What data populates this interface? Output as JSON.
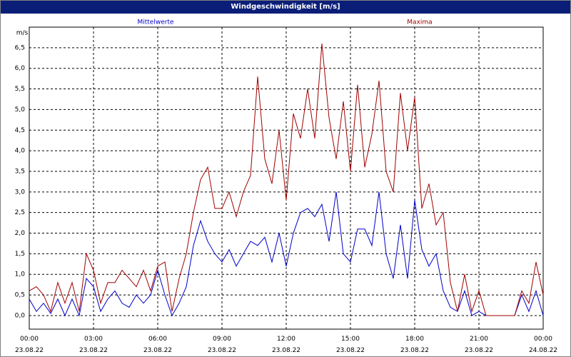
{
  "chart_data": {
    "type": "line",
    "title": "Windgeschwindigkeit [m/s]",
    "y_unit": "m/s",
    "x": [
      0,
      20,
      40,
      60,
      80,
      100,
      120,
      140,
      160,
      180,
      200,
      220,
      240,
      260,
      280,
      300,
      320,
      340,
      360,
      380,
      400,
      420,
      440,
      460,
      480,
      500,
      520,
      540,
      560,
      580,
      600,
      620,
      640,
      660,
      680,
      700,
      720,
      740,
      760,
      780,
      800,
      820,
      840,
      860,
      880,
      900,
      920,
      940,
      960,
      980,
      1000,
      1020,
      1040,
      1060,
      1080,
      1100,
      1120,
      1140,
      1160,
      1180,
      1200,
      1220,
      1240,
      1260,
      1280,
      1300,
      1320,
      1340,
      1360,
      1380,
      1400,
      1420,
      1440
    ],
    "xlim": [
      0,
      1440
    ],
    "xticks": [
      {
        "value": 0,
        "label": "00:00\n23.08.22"
      },
      {
        "value": 180,
        "label": "03:00\n23.08.22"
      },
      {
        "value": 360,
        "label": "06:00\n23.08.22"
      },
      {
        "value": 540,
        "label": "09:00\n23.08.22"
      },
      {
        "value": 720,
        "label": "12:00\n23.08.22"
      },
      {
        "value": 900,
        "label": "15:00\n23.08.22"
      },
      {
        "value": 1080,
        "label": "18:00\n23.08.22"
      },
      {
        "value": 1260,
        "label": "21:00\n23.08.22"
      },
      {
        "value": 1440,
        "label": "00:00\n24.08.22"
      }
    ],
    "ylim": [
      -0.33,
      7.0
    ],
    "yticks": [
      {
        "value": 0,
        "label": "0,0"
      },
      {
        "value": 0.5,
        "label": "0,5"
      },
      {
        "value": 1,
        "label": "1,0"
      },
      {
        "value": 1.5,
        "label": "1,5"
      },
      {
        "value": 2,
        "label": "2,0"
      },
      {
        "value": 2.5,
        "label": "2,5"
      },
      {
        "value": 3,
        "label": "3,0"
      },
      {
        "value": 3.5,
        "label": "3,5"
      },
      {
        "value": 4,
        "label": "4,0"
      },
      {
        "value": 4.5,
        "label": "4,5"
      },
      {
        "value": 5,
        "label": "5,0"
      },
      {
        "value": 5.5,
        "label": "5,5"
      },
      {
        "value": 6,
        "label": "6,0"
      },
      {
        "value": 6.5,
        "label": "6,5"
      }
    ],
    "grid": true,
    "series": [
      {
        "name": "Mittelwerte",
        "color": "#0000c8",
        "values": [
          0.4,
          0.1,
          0.3,
          0.05,
          0.4,
          0,
          0.4,
          0,
          0.9,
          0.7,
          0.1,
          0.4,
          0.6,
          0.3,
          0.2,
          0.5,
          0.3,
          0.5,
          1.1,
          0.5,
          0,
          0.3,
          0.7,
          1.7,
          2.3,
          1.8,
          1.5,
          1.3,
          1.6,
          1.2,
          1.5,
          1.8,
          1.7,
          1.9,
          1.3,
          2.0,
          1.2,
          2.0,
          2.5,
          2.6,
          2.4,
          2.7,
          1.8,
          3.0,
          1.5,
          1.3,
          2.1,
          2.1,
          1.7,
          3.0,
          1.5,
          0.9,
          2.2,
          0.9,
          2.8,
          1.6,
          1.2,
          1.5,
          0.6,
          0.2,
          0.1,
          0.6,
          0,
          0.1,
          0,
          0,
          0,
          0,
          0,
          0.5,
          0.1,
          0.6,
          0
        ]
      },
      {
        "name": "Maxima",
        "color": "#a00000",
        "values": [
          0.6,
          0.7,
          0.5,
          0.1,
          0.8,
          0.3,
          0.8,
          0.1,
          1.5,
          1.1,
          0.3,
          0.8,
          0.8,
          1.1,
          0.9,
          0.7,
          1.1,
          0.6,
          1.2,
          1.3,
          0.1,
          0.9,
          1.5,
          2.5,
          3.3,
          3.6,
          2.6,
          2.6,
          3.0,
          2.4,
          3.0,
          3.4,
          5.8,
          3.8,
          3.2,
          4.5,
          2.8,
          4.9,
          4.3,
          5.5,
          4.3,
          6.6,
          4.8,
          3.8,
          5.2,
          3.5,
          5.6,
          3.6,
          4.4,
          5.7,
          3.5,
          3.0,
          5.4,
          4.0,
          5.3,
          2.6,
          3.2,
          2.2,
          2.5,
          0.8,
          0.1,
          1.0,
          0.1,
          0.6,
          0,
          0,
          0,
          0,
          0,
          0.6,
          0.3,
          1.3,
          0.5
        ]
      }
    ]
  }
}
